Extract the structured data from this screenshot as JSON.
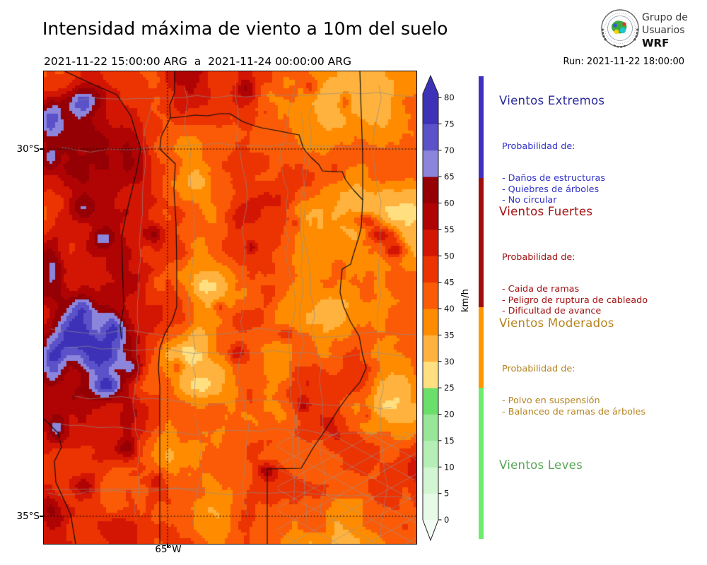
{
  "header": {
    "title": "Intensidad máxima de viento a 10m del suelo",
    "period": "2021-11-22 15:00:00 ARG  a  2021-11-24 00:00:00 ARG",
    "run": "Run: 2021-11-22 18:00:00"
  },
  "logo": {
    "lines": [
      "Grupo de",
      "Usuarios",
      "WRF"
    ]
  },
  "map": {
    "lat_labels": [
      {
        "label": "30°S"
      },
      {
        "label": "35°S"
      }
    ],
    "lon_labels": [
      {
        "label": "65°W"
      }
    ]
  },
  "chart_data": {
    "type": "heatmap",
    "title": "Intensidad máxima de viento a 10m del suelo",
    "period": "2021-11-22 15:00:00 ARG  a  2021-11-24 00:00:00 ARG",
    "run": "Run: 2021-11-22 18:00:00",
    "units": "km/h",
    "geo_axes": {
      "lat_ticks": [
        "30°S",
        "35°S"
      ],
      "lon_ticks": [
        "65°W"
      ],
      "grid": "dotted graticule at 30°S, 35°S and 65°W"
    },
    "colorbar": {
      "label": "km/h",
      "tick_labels": [
        "80",
        "75",
        "70",
        "65",
        "60",
        "55",
        "50",
        "45",
        "40",
        "35",
        "30",
        "25",
        "20",
        "15",
        "10",
        "5",
        "0"
      ],
      "levels": [
        0,
        5,
        10,
        15,
        20,
        25,
        30,
        35,
        40,
        45,
        50,
        55,
        60,
        65,
        70,
        75,
        80
      ],
      "band_colors": [
        "#e7fae7",
        "#d2f5d2",
        "#b6efb6",
        "#98e698",
        "#6adf6a",
        "#ffdf80",
        "#ffb23d",
        "#ff8c00",
        "#fb5b07",
        "#ec3302",
        "#d31604",
        "#b00404",
        "#940004",
        "#8b85dc",
        "#5b51c8",
        "#3d32b7"
      ],
      "under_color": "#f3fcf3",
      "over_color": "#3d32b7",
      "extend": "both"
    },
    "wind_categories": [
      {
        "name": "Vientos Extremos",
        "range_kmh": "> 65",
        "color": "#3e2fc1"
      },
      {
        "name": "Vientos Fuertes",
        "range_kmh": "40 - 65",
        "color": "#a00d0a"
      },
      {
        "name": "Vientos Moderados",
        "range_kmh": "25 - 40",
        "color": "#ff9800"
      },
      {
        "name": "Vientos Leves",
        "range_kmh": "0 - 25",
        "color": "#6dec6d"
      }
    ]
  },
  "legend": {
    "sections": [
      {
        "heading": "Vientos Extremos",
        "heading_color": "#2a2a9c",
        "item_color": "#3232c8",
        "bar_color": "#3e2fc1",
        "intro": "Probabilidad de:",
        "items": [
          "- Daños de estructuras",
          "- Quiebres de árboles",
          "- No circular"
        ]
      },
      {
        "heading": "Vientos Fuertes",
        "heading_color": "#a31212",
        "item_color": "#a31212",
        "bar_color": "#a00d0a",
        "intro": "Probabilidad de:",
        "items": [
          "- Caida de ramas",
          "- Peligro de ruptura de cableado",
          "- Dificultad de avance"
        ]
      },
      {
        "heading": "Vientos Moderados",
        "heading_color": "#b5831f",
        "item_color": "#b5831f",
        "bar_color": "#ff9800",
        "intro": "Probabilidad de:",
        "items": [
          "- Polvo en suspensión",
          "- Balanceo de ramas de árboles"
        ]
      },
      {
        "heading": "Vientos Leves",
        "heading_color": "#55a555",
        "item_color": "#55a555",
        "bar_color": "#6dec6d",
        "intro": "",
        "items": []
      }
    ]
  }
}
